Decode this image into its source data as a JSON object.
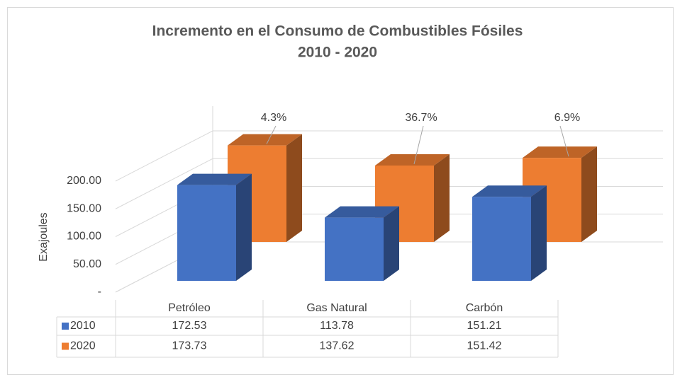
{
  "chart_data": {
    "type": "bar3d",
    "title": [
      "Incremento en el Consumo de Combustibles Fósiles",
      "2010 - 2020"
    ],
    "y_label": "Exajoules",
    "categories": [
      "Petróleo",
      "Gas Natural",
      "Carbón"
    ],
    "series": [
      {
        "name": "2010",
        "color": "#4472c4",
        "values": [
          172.53,
          113.78,
          151.21
        ]
      },
      {
        "name": "2020",
        "color": "#ed7d31",
        "values": [
          173.73,
          137.62,
          151.42
        ]
      }
    ],
    "annotations": [
      "4.3%",
      "36.7%",
      "6.9%"
    ],
    "ylim": [
      0,
      200
    ],
    "yticks": [
      {
        "value": 0,
        "label": "-"
      },
      {
        "value": 50,
        "label": "50.00"
      },
      {
        "value": 100,
        "label": "100.00"
      },
      {
        "value": 150,
        "label": "150.00"
      },
      {
        "value": 200,
        "label": "200.00"
      }
    ],
    "grid": true,
    "data_table": true
  }
}
